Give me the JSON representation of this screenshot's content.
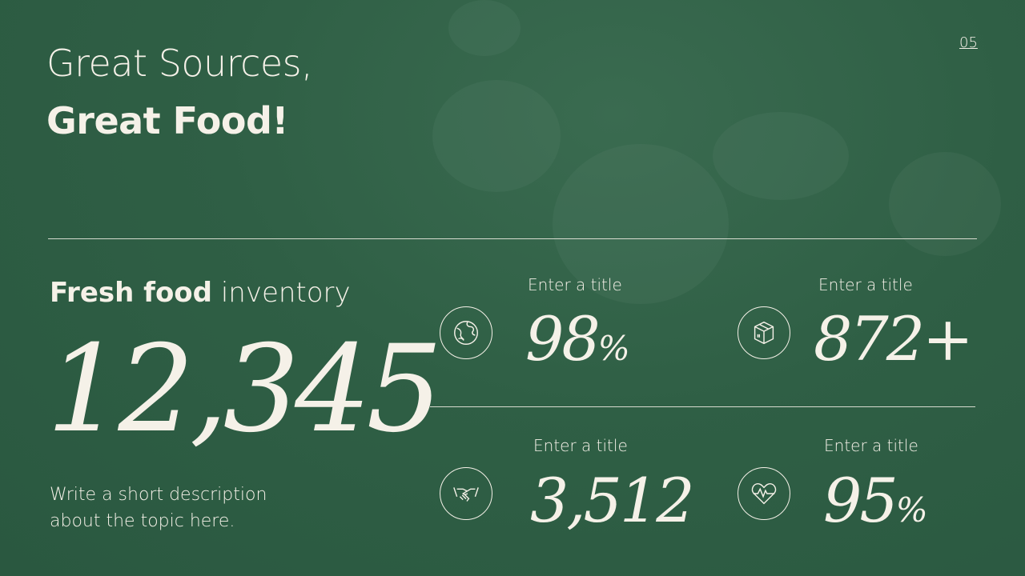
{
  "header": {
    "title_line1": "Great Sources,",
    "title_line2": "Great Food!",
    "page_number": "05"
  },
  "main": {
    "subtitle_bold": "Fresh food",
    "subtitle_light": " inventory",
    "big_number": "12,345",
    "description": "Write a short description about the topic here."
  },
  "stats": [
    {
      "title": "Enter a title",
      "value": "98",
      "suffix": "%",
      "icon": "globe-icon"
    },
    {
      "title": "Enter a title",
      "value": "872+",
      "suffix": "",
      "icon": "box-icon"
    },
    {
      "title": "Enter a title",
      "value": "3,512",
      "suffix": "",
      "icon": "handshake-icon"
    },
    {
      "title": "Enter a title",
      "value": "95",
      "suffix": "%",
      "icon": "heart-pulse-icon"
    }
  ],
  "colors": {
    "background": "#2f5f45",
    "text": "#f5f1e8"
  }
}
